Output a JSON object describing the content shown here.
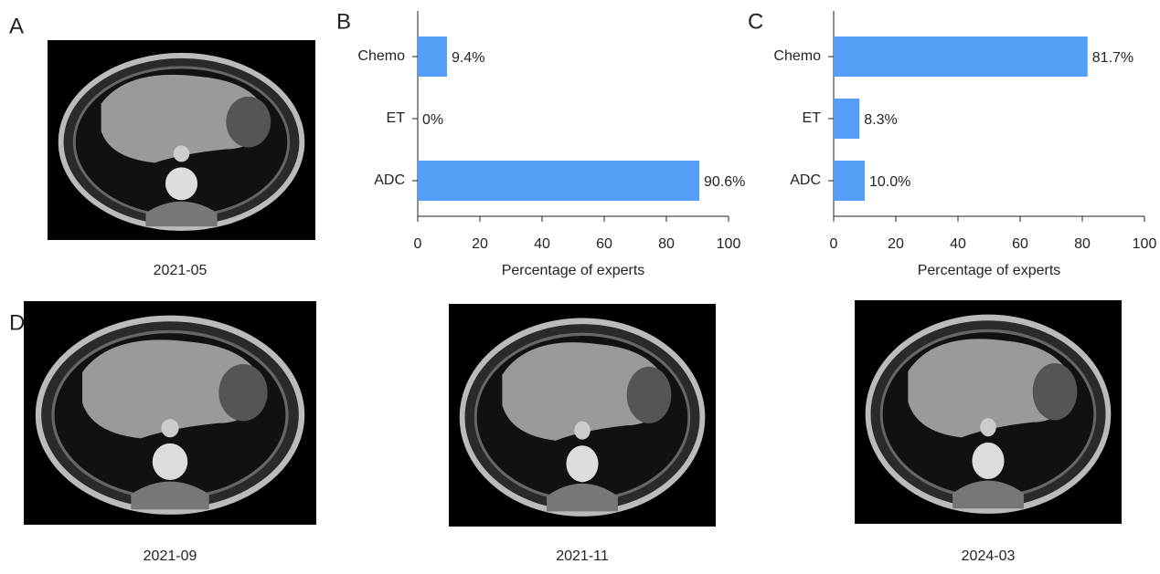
{
  "panel_labels": [
    "A",
    "B",
    "C",
    "D"
  ],
  "scans": [
    {
      "date": "2021-05"
    },
    {
      "date": "2021-09"
    },
    {
      "date": "2021-11"
    },
    {
      "date": "2024-03"
    }
  ],
  "chart_data": [
    {
      "type": "bar",
      "orientation": "horizontal",
      "categories": [
        "Chemo",
        "ET",
        "ADC"
      ],
      "values": [
        9.4,
        0,
        90.6
      ],
      "value_labels": [
        "9.4%",
        "0%",
        "90.6%"
      ],
      "color": "#559ef8",
      "xlabel": "Percentage of experts",
      "xlim": [
        0,
        100
      ],
      "xticks": [
        0,
        20,
        40,
        60,
        80,
        100
      ]
    },
    {
      "type": "bar",
      "orientation": "horizontal",
      "categories": [
        "Chemo",
        "ET",
        "ADC"
      ],
      "values": [
        81.7,
        8.3,
        10.0
      ],
      "value_labels": [
        "81.7%",
        "8.3%",
        "10.0%"
      ],
      "color": "#559ef8",
      "xlabel": "Percentage of experts",
      "xlim": [
        0,
        100
      ],
      "xticks": [
        0,
        20,
        40,
        60,
        80,
        100
      ]
    }
  ]
}
